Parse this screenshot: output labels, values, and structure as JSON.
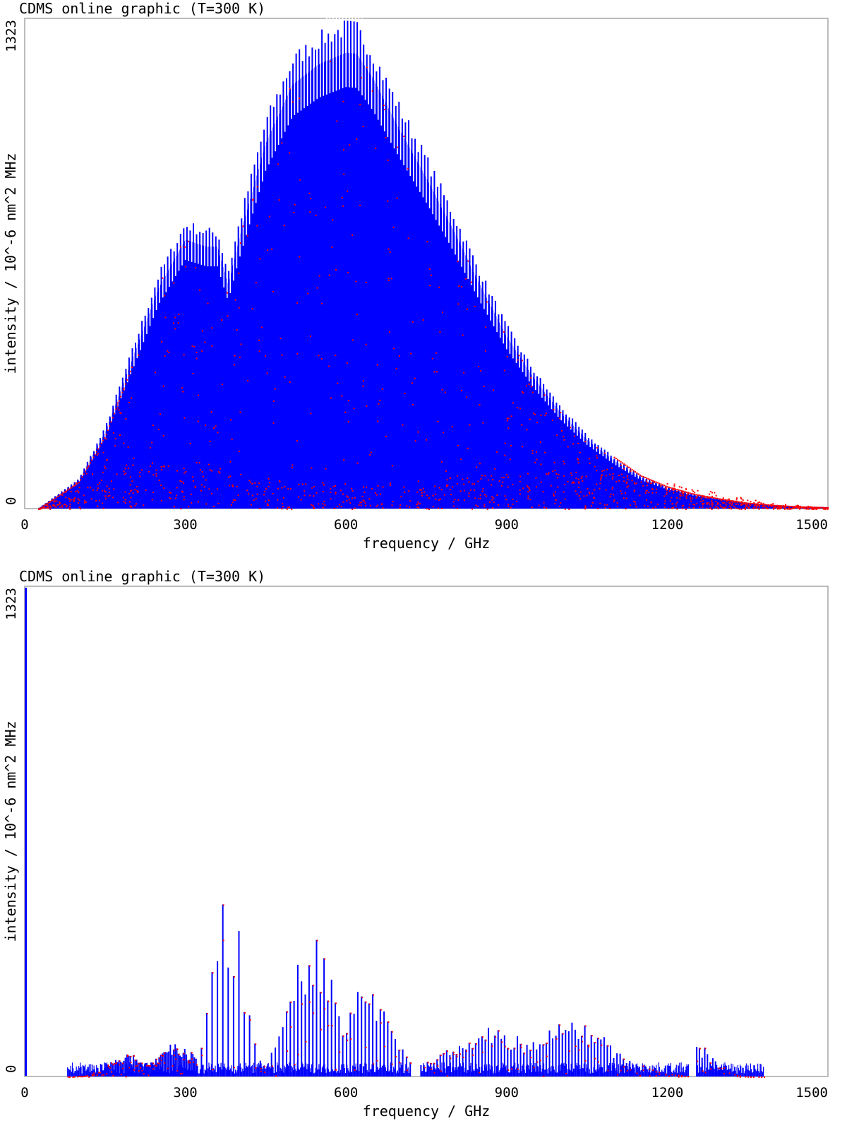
{
  "chart_data": [
    {
      "type": "bar",
      "title": "CDMS online graphic (T=300 K)",
      "xlabel": "frequency / GHz",
      "ylabel": "intensity / 10^-6 nm^2 MHz",
      "xlim": [
        0,
        1500
      ],
      "ylim": [
        0,
        1323
      ],
      "xticks": [
        "0",
        "300",
        "600",
        "900",
        "1200",
        "1500"
      ],
      "yticks": [
        "0",
        "1323"
      ],
      "colors": {
        "lines": "#0000ff",
        "markers": "#ff0000",
        "frame": "#a6a6a6"
      },
      "envelope": {
        "x": [
          25,
          100,
          150,
          200,
          250,
          300,
          340,
          360,
          380,
          400,
          450,
          500,
          550,
          600,
          620,
          650,
          700,
          750,
          800,
          850,
          900,
          950,
          1000,
          1050,
          1100,
          1150,
          1200,
          1250,
          1300,
          1350,
          1400,
          1450,
          1500
        ],
        "y": [
          0,
          80,
          220,
          430,
          640,
          780,
          760,
          760,
          650,
          780,
          1060,
          1230,
          1290,
          1323,
          1320,
          1250,
          1100,
          960,
          810,
          650,
          500,
          380,
          280,
          200,
          140,
          90,
          60,
          40,
          27,
          16,
          10,
          6,
          4
        ]
      },
      "inner_envelope": {
        "x": [
          25,
          100,
          200,
          280,
          350,
          400,
          500,
          600,
          700,
          800,
          900,
          1000,
          1100,
          1200,
          1300,
          1400,
          1500
        ],
        "y": [
          0,
          40,
          100,
          120,
          100,
          80,
          60,
          60,
          60,
          70,
          80,
          85,
          80,
          60,
          35,
          12,
          4
        ]
      }
    },
    {
      "type": "bar",
      "title": "CDMS online graphic (T=300 K)",
      "xlabel": "frequency / GHz",
      "ylabel": "intensity / 10^-6 nm^2 MHz",
      "xlim": [
        0,
        1500
      ],
      "ylim": [
        0,
        1323
      ],
      "xticks": [
        "0",
        "300",
        "600",
        "900",
        "1200",
        "1500"
      ],
      "yticks": [
        "0",
        "1323"
      ],
      "colors": {
        "lines": "#0000ff",
        "markers": "#ff0000",
        "frame": "#a6a6a6"
      },
      "segments": [
        {
          "x0": 80,
          "x1": 320,
          "peak_x": [
            195,
            280
          ],
          "peak_y": [
            60,
            95
          ],
          "spacing": 3
        },
        {
          "x0": 320,
          "x1": 440,
          "peak_x": [
            380
          ],
          "peak_y": [
            520
          ],
          "spacing": 10
        },
        {
          "x0": 440,
          "x1": 720,
          "peak_x": [
            540,
            640
          ],
          "peak_y": [
            400,
            290
          ],
          "spacing": 7
        },
        {
          "x0": 740,
          "x1": 1240,
          "peak_x": [
            870,
            1020
          ],
          "peak_y": [
            140,
            150
          ],
          "spacing": 6
        },
        {
          "x0": 1255,
          "x1": 1380,
          "peak_x": [
            1260
          ],
          "peak_y": [
            85
          ],
          "spacing": 5
        }
      ]
    }
  ]
}
